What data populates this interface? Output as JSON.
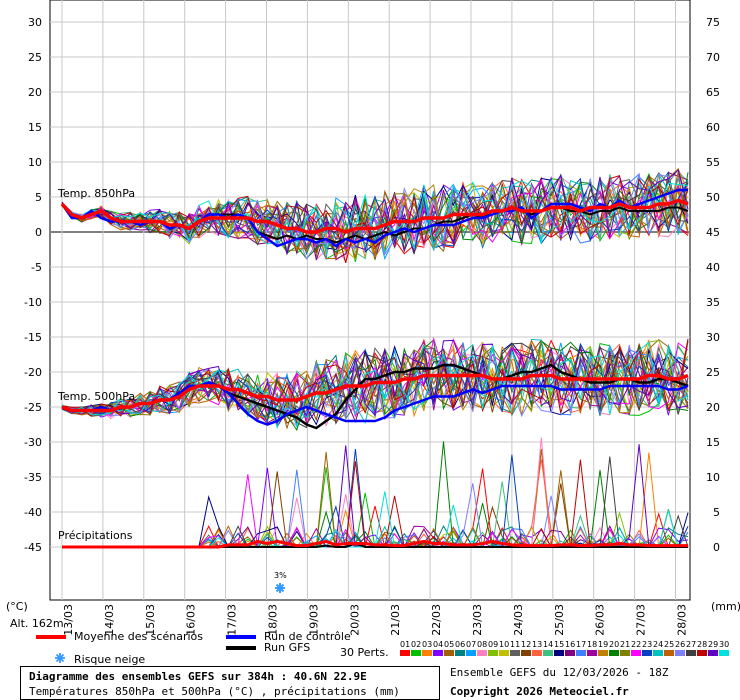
{
  "chart_data": {
    "type": "line",
    "left_axis_unit": "(°C)",
    "right_axis_unit": "(mm)",
    "left_ticks": [
      30,
      25,
      20,
      15,
      10,
      5,
      0,
      -5,
      -10,
      -15,
      -20,
      -25,
      -30,
      -35,
      -40,
      -45
    ],
    "right_ticks": [
      75,
      70,
      65,
      60,
      55,
      50,
      45,
      40,
      35,
      30,
      25,
      20,
      15,
      10,
      5,
      0
    ],
    "x_dates": [
      "13/03",
      "14/03",
      "15/03",
      "16/03",
      "17/03",
      "18/03",
      "19/03",
      "20/03",
      "21/03",
      "22/03",
      "23/03",
      "24/03",
      "25/03",
      "26/03",
      "27/03",
      "28/03"
    ],
    "panel_labels": {
      "t850": "Temp. 850hPa",
      "t500": "Temp. 500hPa",
      "precip": "Précipitations"
    },
    "altitude": "Alt. 162m",
    "snow_marker_text": "3%",
    "mean_850": [
      4,
      2.5,
      2,
      2.5,
      3,
      2,
      1.5,
      1.5,
      1.5,
      1.5,
      1.5,
      1,
      1,
      0.5,
      1.5,
      2,
      2,
      2,
      2,
      2,
      1.5,
      1.5,
      1,
      0.5,
      0.5,
      0,
      0,
      0.5,
      0.5,
      0,
      0.5,
      0.5,
      0.5,
      1,
      1.5,
      1.5,
      1.5,
      2,
      2,
      2,
      2.5,
      2.5,
      2.5,
      2.5,
      3,
      3,
      3.5,
      3,
      3,
      3,
      3.5,
      3.5,
      3.5,
      3,
      3.5,
      3.5,
      3.5,
      4,
      3.5,
      3.5,
      3.5,
      4,
      4,
      4.5,
      4
    ],
    "mean_500": [
      -25,
      -25.5,
      -25.5,
      -25.5,
      -25.5,
      -25.5,
      -25,
      -25,
      -24.5,
      -24.5,
      -24,
      -24,
      -23.5,
      -22.5,
      -22,
      -22,
      -22,
      -22.5,
      -22.5,
      -23,
      -23.5,
      -23.5,
      -24,
      -24,
      -24,
      -23.5,
      -23,
      -23,
      -22.5,
      -22,
      -22,
      -22,
      -21.5,
      -21.5,
      -21.5,
      -21,
      -21,
      -20.5,
      -20.5,
      -20.5,
      -20.5,
      -20.5,
      -20.5,
      -20.5,
      -21,
      -21,
      -21,
      -21,
      -20.5,
      -20.5,
      -20.5,
      -21,
      -21,
      -21,
      -21,
      -21,
      -21,
      -21,
      -21,
      -21,
      -20.5,
      -20.5,
      -21,
      -21,
      -20.5
    ],
    "mean_precip": [
      0,
      0,
      0,
      0,
      0,
      0,
      0,
      0,
      0,
      0,
      0,
      0,
      0,
      0,
      0,
      0,
      0,
      0.3,
      0.3,
      0.3,
      0.8,
      0.5,
      0.8,
      0.5,
      0.2,
      0.2,
      0.5,
      0.8,
      0.3,
      0.5,
      0.5,
      0.5,
      0.3,
      0.3,
      0.2,
      0.2,
      0.5,
      0.8,
      0.5,
      0.5,
      0.3,
      0.3,
      0.3,
      0.5,
      0.8,
      0.5,
      0.3,
      0.2,
      0.2,
      0.2,
      0.2,
      0.3,
      0.3,
      0.2,
      0.2,
      0.3,
      0.3,
      0.5,
      0.3,
      0.3,
      0.2,
      0.2,
      0.2,
      0.2,
      0.2
    ],
    "control_850": [
      4,
      2,
      2,
      3,
      2,
      1.5,
      1.5,
      1.5,
      1,
      1.5,
      1.5,
      0.5,
      1,
      0.5,
      1.5,
      2.5,
      2.5,
      2,
      2.5,
      2,
      0,
      -1,
      -2,
      -1.5,
      -1,
      -1,
      -1.5,
      -1,
      -2,
      -1,
      -1.5,
      -1,
      -1.5,
      -0.5,
      0,
      0.5,
      0,
      0.5,
      1,
      1,
      1,
      1.5,
      2,
      2,
      2.5,
      3,
      3,
      3.5,
      2,
      3,
      4,
      4,
      4,
      3.5,
      3,
      4,
      3.5,
      4.5,
      3.5,
      4,
      4.5,
      5,
      5.5,
      6,
      6
    ],
    "control_500": [
      -25,
      -25.5,
      -25.5,
      -25.5,
      -25,
      -25.5,
      -25,
      -25,
      -24.5,
      -24.5,
      -24,
      -24,
      -23,
      -22,
      -22,
      -21.5,
      -22,
      -23,
      -24.5,
      -26,
      -27,
      -27.5,
      -27,
      -26,
      -25.5,
      -25,
      -25.5,
      -26,
      -26.5,
      -27,
      -27,
      -27,
      -27,
      -26.5,
      -25.5,
      -25,
      -24.5,
      -24,
      -23.5,
      -23.5,
      -23.5,
      -23,
      -22.5,
      -23,
      -22.5,
      -22,
      -22,
      -22,
      -22,
      -22,
      -22,
      -22.5,
      -22.5,
      -22.5,
      -22.5,
      -22.5,
      -22,
      -22,
      -22,
      -22,
      -22,
      -22,
      -22.5,
      -22.5,
      -22
    ],
    "gfs_850": [
      4,
      2,
      2,
      3,
      2,
      1.5,
      1.5,
      1.5,
      1,
      1.5,
      1.5,
      0.5,
      1,
      0.5,
      1.5,
      2.5,
      2.5,
      2.5,
      2.5,
      2,
      0,
      -0.5,
      -1,
      -0.5,
      -1,
      -0.5,
      -1,
      -1,
      -1.5,
      -1,
      -0.5,
      -1,
      -0.5,
      0,
      -0.5,
      0,
      0.5,
      0.5,
      1,
      1.5,
      1.5,
      2,
      2.5,
      2,
      3,
      3,
      3.5,
      3,
      2.5,
      3,
      3.5,
      3.5,
      3,
      3,
      2.5,
      3,
      3,
      3.5,
      3,
      3,
      3,
      3,
      3.5,
      3.5,
      3
    ],
    "gfs_500": [
      -25,
      -25.5,
      -25.5,
      -25.5,
      -25,
      -25.5,
      -25,
      -25,
      -24.5,
      -24.5,
      -24,
      -24,
      -23,
      -22,
      -22,
      -21.5,
      -22,
      -23,
      -23.5,
      -24,
      -24.5,
      -25,
      -25.5,
      -26,
      -26.5,
      -27.5,
      -28,
      -27,
      -26,
      -24,
      -22.5,
      -21,
      -21,
      -20.5,
      -20,
      -20,
      -19.5,
      -19.5,
      -19.5,
      -19,
      -19,
      -19.5,
      -20,
      -20.5,
      -21,
      -21,
      -20.5,
      -20,
      -20,
      -19.5,
      -19,
      -20,
      -20.5,
      -21,
      -21.5,
      -21.5,
      -21.5,
      -21,
      -21,
      -21.5,
      -21.5,
      -21,
      -21,
      -21.5,
      -22
    ],
    "gfs_precip": [
      0,
      0,
      0,
      0,
      0,
      0,
      0,
      0,
      0,
      0,
      0,
      0,
      0,
      0,
      0,
      0,
      0,
      0,
      0,
      0,
      0,
      0,
      0,
      0,
      0,
      0,
      0,
      0.2,
      0,
      0,
      0.5,
      0,
      0,
      0,
      0,
      0,
      0,
      0,
      0,
      0,
      0,
      0,
      0,
      0,
      0,
      0,
      0,
      0,
      0,
      0,
      0,
      0,
      0,
      0,
      0,
      0,
      0,
      0,
      0,
      0,
      0,
      0,
      0,
      0,
      0
    ]
  },
  "legend": {
    "mean": "Moyenne des scénarios",
    "control": "Run de contrôle",
    "gfs": "Run GFS",
    "snow": "Risque neige",
    "perts_label": "30 Perts.",
    "pert_numbers": [
      "01",
      "02",
      "03",
      "04",
      "05",
      "06",
      "07",
      "08",
      "09",
      "10",
      "11",
      "12",
      "13",
      "14",
      "15",
      "16",
      "17",
      "18",
      "19",
      "20",
      "21",
      "22",
      "23",
      "24",
      "25",
      "26",
      "27",
      "28",
      "29",
      "30"
    ],
    "pert_colors": [
      "#ff0000",
      "#00c000",
      "#ff8000",
      "#8000ff",
      "#a06000",
      "#008080",
      "#00a0ff",
      "#ff80c0",
      "#80c000",
      "#c0c000",
      "#606060",
      "#804000",
      "#ff6040",
      "#40c080",
      "#000080",
      "#800080",
      "#4080ff",
      "#a000a0",
      "#c08000",
      "#008000",
      "#808000",
      "#ff00ff",
      "#0040c0",
      "#00c0c0",
      "#c06000",
      "#8080ff",
      "#404040",
      "#c00000",
      "#6000c0",
      "#00e0e0"
    ],
    "colors": {
      "mean": "#ff0000",
      "control": "#0000ff",
      "gfs": "#000000"
    }
  },
  "footer": {
    "title": "Diagramme des ensembles GEFS sur 384h : 40.6N 22.9E",
    "subtitle": "Températures 850hPa et 500hPa (°C) , précipitations (mm)",
    "ensemble": "Ensemble GEFS du 12/03/2026 - 18Z",
    "copyright": "Copyright 2026 Meteociel.fr"
  }
}
